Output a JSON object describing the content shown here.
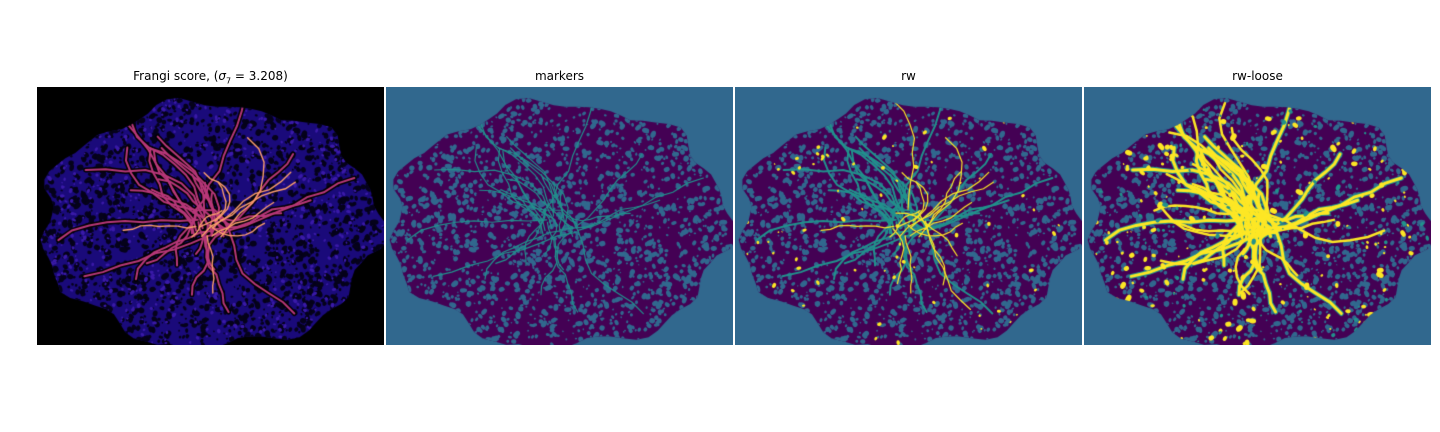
{
  "figure": {
    "panels": [
      {
        "id": "frangi",
        "title_prefix": "Frangi score, (",
        "title_math": "σ",
        "title_sub": "7",
        "title_suffix": " = 3.208)",
        "colormap": "magma",
        "background_color": "#000000"
      },
      {
        "id": "markers",
        "title": "markers",
        "colormap": "viridis",
        "background_color": "#31688e"
      },
      {
        "id": "rw",
        "title": "rw",
        "colormap": "viridis",
        "background_color": "#31688e"
      },
      {
        "id": "rw-loose",
        "title": "rw-loose",
        "colormap": "viridis",
        "background_color": "#31688e"
      }
    ],
    "colors": {
      "tissue_dark": "#440154",
      "vessel_teal": "#21918c",
      "vessel_yellow": "#fde725",
      "frangi_tissue": "#1a0a7a",
      "frangi_vessel": "#b73779",
      "frangi_bright": "#fc9f6b"
    }
  }
}
